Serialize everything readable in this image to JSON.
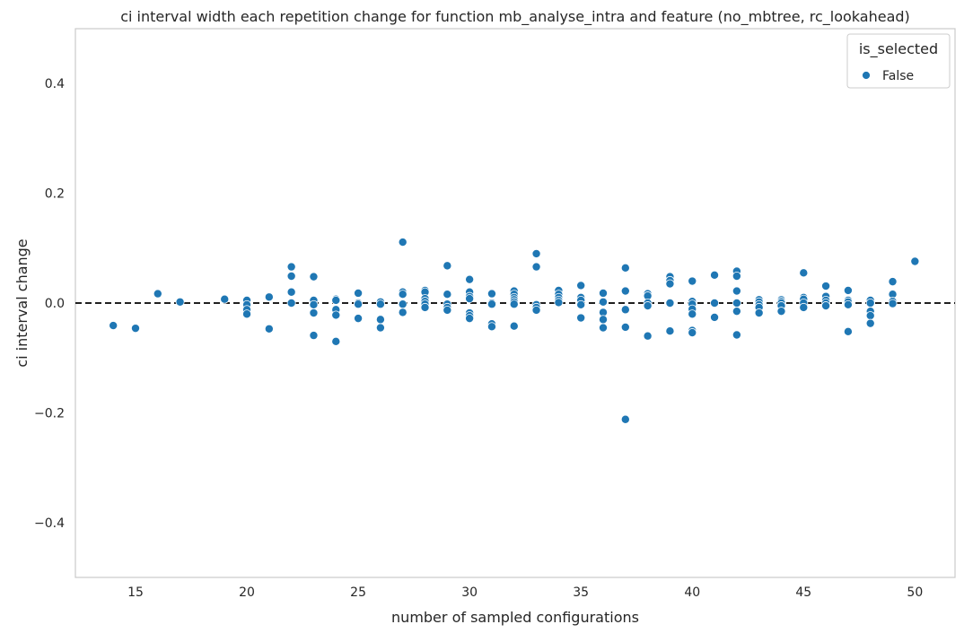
{
  "chart_data": {
    "type": "scatter",
    "title": "ci interval width each repetition change for function mb_analyse_intra and feature (no_mbtree, rc_lookahead)",
    "xlabel": "number of sampled configurations",
    "ylabel": "ci interval change",
    "xlim": [
      12.3,
      51.8
    ],
    "ylim": [
      -0.5,
      0.5
    ],
    "xticks": [
      15,
      20,
      25,
      30,
      35,
      40,
      45,
      50
    ],
    "xtick_labels": [
      "15",
      "20",
      "25",
      "30",
      "35",
      "40",
      "45",
      "50"
    ],
    "yticks": [
      -0.4,
      -0.2,
      0.0,
      0.2,
      0.4
    ],
    "ytick_labels": [
      "−0.4",
      "−0.2",
      "0.0",
      "0.2",
      "0.4"
    ],
    "grid": false,
    "reference_line": {
      "y": 0.0,
      "style": "dashed",
      "color": "#000000"
    },
    "legend": {
      "title": "is_selected",
      "placement": "top-right",
      "entries": [
        "False"
      ]
    },
    "series": [
      {
        "name": "False",
        "color": "#1f77b4",
        "points": [
          [
            14,
            -0.041
          ],
          [
            15,
            -0.046
          ],
          [
            16,
            0.017
          ],
          [
            17,
            0.002
          ],
          [
            19,
            0.007
          ],
          [
            20,
            0.005
          ],
          [
            20,
            -0.003
          ],
          [
            20,
            -0.012
          ],
          [
            20,
            -0.02
          ],
          [
            21,
            0.012
          ],
          [
            21,
            0.011
          ],
          [
            21,
            -0.047
          ],
          [
            22,
            0.066
          ],
          [
            22,
            0.049
          ],
          [
            22,
            0.02
          ],
          [
            22,
            0.0
          ],
          [
            23,
            0.048
          ],
          [
            23,
            0.005
          ],
          [
            23,
            -0.003
          ],
          [
            23,
            -0.018
          ],
          [
            23,
            -0.059
          ],
          [
            24,
            0.007
          ],
          [
            24,
            0.005
          ],
          [
            24,
            -0.012
          ],
          [
            24,
            -0.022
          ],
          [
            24,
            -0.07
          ],
          [
            25,
            0.018
          ],
          [
            25,
            0.0
          ],
          [
            25,
            -0.002
          ],
          [
            25,
            -0.028
          ],
          [
            26,
            0.002
          ],
          [
            26,
            -0.002
          ],
          [
            26,
            -0.03
          ],
          [
            26,
            -0.045
          ],
          [
            27,
            0.111
          ],
          [
            27,
            0.02
          ],
          [
            27,
            0.016
          ],
          [
            27,
            -0.002
          ],
          [
            27,
            -0.017
          ],
          [
            28,
            0.023
          ],
          [
            28,
            0.02
          ],
          [
            28,
            0.008
          ],
          [
            28,
            0.003
          ],
          [
            28,
            -0.002
          ],
          [
            28,
            -0.008
          ],
          [
            29,
            0.068
          ],
          [
            29,
            0.016
          ],
          [
            29,
            -0.002
          ],
          [
            29,
            -0.008
          ],
          [
            29,
            -0.013
          ],
          [
            30,
            0.043
          ],
          [
            30,
            0.02
          ],
          [
            30,
            0.012
          ],
          [
            30,
            0.008
          ],
          [
            30,
            -0.018
          ],
          [
            30,
            -0.023
          ],
          [
            30,
            -0.028
          ],
          [
            31,
            0.017
          ],
          [
            31,
            0.0
          ],
          [
            31,
            -0.002
          ],
          [
            31,
            -0.038
          ],
          [
            31,
            -0.043
          ],
          [
            32,
            0.022
          ],
          [
            32,
            0.016
          ],
          [
            32,
            0.01
          ],
          [
            32,
            0.006
          ],
          [
            32,
            0.002
          ],
          [
            32,
            -0.002
          ],
          [
            32,
            -0.042
          ],
          [
            33,
            0.09
          ],
          [
            33,
            0.066
          ],
          [
            33,
            -0.003
          ],
          [
            33,
            -0.008
          ],
          [
            33,
            -0.013
          ],
          [
            34,
            0.023
          ],
          [
            34,
            0.016
          ],
          [
            34,
            0.01
          ],
          [
            34,
            0.005
          ],
          [
            34,
            0.001
          ],
          [
            35,
            0.032
          ],
          [
            35,
            0.01
          ],
          [
            35,
            0.005
          ],
          [
            35,
            -0.003
          ],
          [
            35,
            -0.027
          ],
          [
            36,
            0.018
          ],
          [
            36,
            0.002
          ],
          [
            36,
            -0.017
          ],
          [
            36,
            -0.03
          ],
          [
            36,
            -0.045
          ],
          [
            37,
            0.064
          ],
          [
            37,
            0.022
          ],
          [
            37,
            -0.012
          ],
          [
            37,
            -0.044
          ],
          [
            37,
            -0.212
          ],
          [
            38,
            0.017
          ],
          [
            38,
            0.013
          ],
          [
            38,
            0.0
          ],
          [
            38,
            -0.005
          ],
          [
            38,
            -0.06
          ],
          [
            39,
            0.048
          ],
          [
            39,
            0.041
          ],
          [
            39,
            0.035
          ],
          [
            39,
            0.0
          ],
          [
            39,
            -0.051
          ],
          [
            40,
            0.04
          ],
          [
            40,
            0.003
          ],
          [
            40,
            -0.002
          ],
          [
            40,
            -0.011
          ],
          [
            40,
            -0.02
          ],
          [
            40,
            -0.05
          ],
          [
            40,
            -0.054
          ],
          [
            41,
            0.051
          ],
          [
            41,
            0.0
          ],
          [
            41,
            -0.026
          ],
          [
            42,
            0.058
          ],
          [
            42,
            0.049
          ],
          [
            42,
            0.022
          ],
          [
            42,
            0.0
          ],
          [
            42,
            -0.015
          ],
          [
            42,
            -0.058
          ],
          [
            43,
            0.006
          ],
          [
            43,
            0.002
          ],
          [
            43,
            -0.003
          ],
          [
            43,
            -0.008
          ],
          [
            43,
            -0.018
          ],
          [
            44,
            0.006
          ],
          [
            44,
            0.003
          ],
          [
            44,
            0.0
          ],
          [
            44,
            -0.005
          ],
          [
            44,
            -0.015
          ],
          [
            45,
            0.055
          ],
          [
            45,
            0.01
          ],
          [
            45,
            0.007
          ],
          [
            45,
            0.0
          ],
          [
            45,
            -0.008
          ],
          [
            46,
            0.031
          ],
          [
            46,
            0.012
          ],
          [
            46,
            0.005
          ],
          [
            46,
            0.0
          ],
          [
            46,
            -0.005
          ],
          [
            47,
            0.023
          ],
          [
            47,
            0.005
          ],
          [
            47,
            0.002
          ],
          [
            47,
            -0.003
          ],
          [
            47,
            -0.052
          ],
          [
            48,
            0.005
          ],
          [
            48,
            0.0
          ],
          [
            48,
            -0.015
          ],
          [
            48,
            -0.023
          ],
          [
            48,
            -0.037
          ],
          [
            49,
            0.039
          ],
          [
            49,
            0.016
          ],
          [
            49,
            0.003
          ],
          [
            49,
            -0.001
          ],
          [
            50,
            0.076
          ]
        ]
      }
    ]
  }
}
